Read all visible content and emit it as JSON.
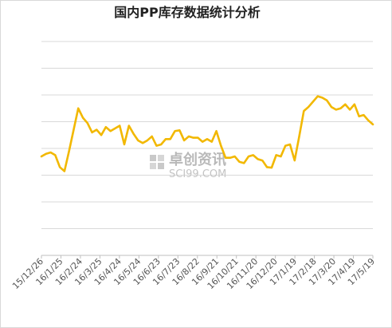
{
  "title": "国内PP库存数据统计分析",
  "watermark": {
    "text": "卓创资讯",
    "sub": "SCI99.COM"
  },
  "colors": {
    "line": "#f2b800",
    "grid": "#d9d9d9",
    "axis": "#bfbfbf"
  },
  "chart_data": {
    "type": "line",
    "title": "国内PP库存数据统计分析",
    "xlabel": "",
    "ylabel": "",
    "grid": true,
    "y_ticks_shown": false,
    "x_tick_labels": [
      "15/12/26",
      "16/1/25",
      "16/2/24",
      "16/3/25",
      "16/4/24",
      "16/5/24",
      "16/6/23",
      "16/7/23",
      "16/8/22",
      "16/9/21",
      "16/10/21",
      "16/11/20",
      "16/12/20",
      "17/1/19",
      "17/2/18",
      "17/3/20",
      "17/4/19",
      "17/5/19"
    ],
    "series": [
      {
        "values": [
          3.7,
          3.8,
          3.85,
          3.75,
          3.3,
          3.15,
          3.9,
          4.7,
          5.5,
          5.15,
          4.95,
          4.6,
          4.7,
          4.5,
          4.8,
          4.65,
          4.75,
          4.85,
          4.15,
          4.85,
          4.55,
          4.3,
          4.2,
          4.3,
          4.45,
          4.1,
          4.15,
          4.35,
          4.35,
          4.65,
          4.68,
          4.3,
          4.45,
          4.4,
          4.4,
          4.25,
          4.35,
          4.25,
          4.65,
          4.1,
          3.65,
          3.65,
          3.7,
          3.5,
          3.45,
          3.7,
          3.75,
          3.6,
          3.55,
          3.3,
          3.28,
          3.75,
          3.7,
          4.1,
          4.15,
          3.55,
          4.45,
          5.4,
          5.55,
          5.75,
          5.95,
          5.9,
          5.8,
          5.55,
          5.45,
          5.5,
          5.65,
          5.45,
          5.65,
          5.2,
          5.25,
          5.05,
          4.9
        ]
      }
    ],
    "ylim": [
      0,
      8
    ]
  }
}
